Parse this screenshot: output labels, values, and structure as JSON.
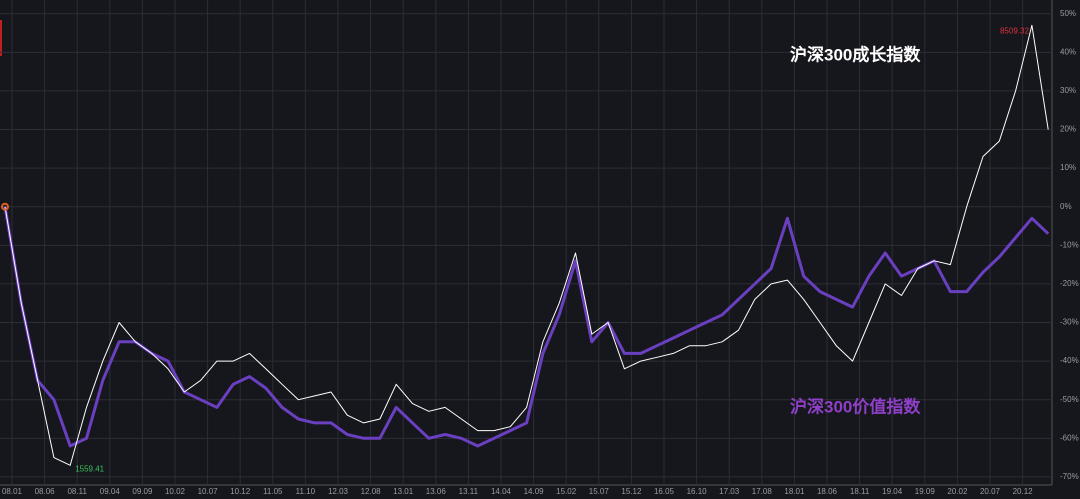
{
  "chart_data": {
    "type": "line",
    "categories": [
      "08.01",
      null,
      "08.06",
      null,
      "08.11",
      null,
      "09.04",
      null,
      "09.09",
      null,
      "10.02",
      null,
      "10.07",
      null,
      "10.12",
      null,
      "11.05",
      null,
      "11.10",
      null,
      "12.03",
      null,
      "12.08",
      null,
      "13.01",
      null,
      "13.06",
      null,
      "13.11",
      null,
      "14.04",
      null,
      "14.09",
      null,
      "15.02",
      null,
      "15.07",
      null,
      "15.12",
      null,
      "16.05",
      null,
      "16.10",
      null,
      "17.03",
      null,
      "17.08",
      null,
      "18.01",
      null,
      "18.06",
      null,
      "18.11",
      null,
      "19.04",
      null,
      "19.09",
      null,
      "20.02",
      null,
      "20.07",
      null,
      "20.12",
      null,
      null
    ],
    "series": [
      {
        "name": "沪深300价值指数",
        "color": "#6a3fc0",
        "width": 3,
        "values": [
          0,
          -25,
          -45,
          -50,
          -62,
          -60,
          -45,
          -35,
          -35,
          -38,
          -40,
          -48,
          -50,
          -52,
          -46,
          -44,
          -47,
          -52,
          -55,
          -56,
          -56,
          -59,
          -60,
          -60,
          -52,
          -56,
          -60,
          -59,
          -60,
          -62,
          -60,
          -58,
          -56,
          -38,
          -28,
          -14,
          -35,
          -30,
          -38,
          -38,
          -36,
          -34,
          -32,
          -30,
          -28,
          -24,
          -20,
          -16,
          -3,
          -18,
          -22,
          -24,
          -26,
          -18,
          -12,
          -18,
          -16,
          -14,
          -22,
          -22,
          -17,
          -13,
          -8,
          -3,
          -7
        ]
      },
      {
        "name": "沪深300成长指数",
        "color": "#ffffff",
        "width": 1,
        "values": [
          0,
          -25,
          -45,
          -65,
          -67,
          -52,
          -40,
          -30,
          -35,
          -38,
          -42,
          -48,
          -45,
          -40,
          -40,
          -38,
          -42,
          -46,
          -50,
          -49,
          -48,
          -54,
          -56,
          -55,
          -46,
          -51,
          -53,
          -52,
          -55,
          -58,
          -58,
          -57,
          -52,
          -35,
          -25,
          -12,
          -33,
          -30,
          -42,
          -40,
          -39,
          -38,
          -36,
          -36,
          -35,
          -32,
          -24,
          -20,
          -19,
          -24,
          -30,
          -36,
          -40,
          -30,
          -20,
          -23,
          -16,
          -14,
          -15,
          0,
          13,
          17,
          30,
          47,
          20
        ]
      }
    ],
    "annotations": [
      {
        "text": "8509.32",
        "color": "#e0303a"
      },
      {
        "text": "1559.41",
        "color": "#3ec060"
      }
    ],
    "ylim": [
      -74,
      51
    ],
    "yticks": [
      {
        "value": 50,
        "label": "50%"
      },
      {
        "value": 40,
        "label": "40%"
      },
      {
        "value": 30,
        "label": "30%"
      },
      {
        "value": 20,
        "label": "20%"
      },
      {
        "value": 10,
        "label": "10%"
      },
      {
        "value": 0,
        "label": "0%"
      },
      {
        "value": -10,
        "label": "-10%"
      },
      {
        "value": -20,
        "label": "-20%"
      },
      {
        "value": -30,
        "label": "-30%"
      },
      {
        "value": -40,
        "label": "-40%"
      },
      {
        "value": -50,
        "label": "-50%"
      },
      {
        "value": -60,
        "label": "-60%"
      },
      {
        "value": -70,
        "label": "-70%"
      }
    ],
    "grid": true
  }
}
